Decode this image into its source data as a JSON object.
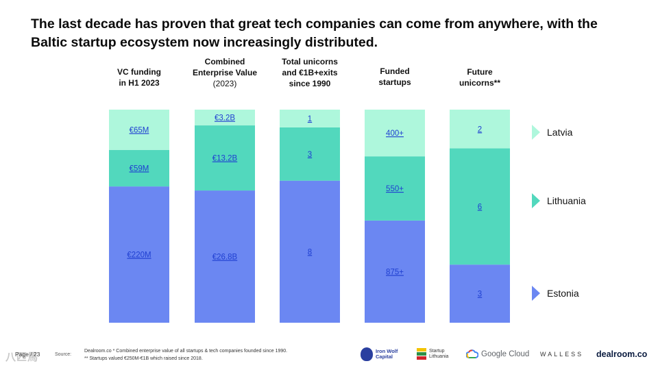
{
  "title": "The last decade has proven that great tech companies can come from anywhere, with the Baltic startup ecosystem now increasingly distributed.",
  "chart_data": {
    "type": "bar",
    "stacked": "100%",
    "categories": [
      [
        "VC funding",
        "in H1 2023"
      ],
      [
        "Combined",
        "Enterprise Value",
        "(2023)"
      ],
      [
        "Total unicorns",
        "and €1B+exits",
        "since 1990"
      ],
      [
        "Funded",
        "startups"
      ],
      [
        "Future",
        "unicorns**"
      ]
    ],
    "series": [
      {
        "name": "Estonia",
        "color": "#6b87f2",
        "values": [
          220,
          26.8,
          8,
          875,
          3
        ],
        "labels": [
          "€220M",
          "€26.8B",
          "8",
          "875+",
          "3"
        ]
      },
      {
        "name": "Lithuania",
        "color": "#52d8bd",
        "values": [
          59,
          13.2,
          3,
          550,
          6
        ],
        "labels": [
          "€59M",
          "€13.2B",
          "3",
          "550+",
          "6"
        ]
      },
      {
        "name": "Latvia",
        "color": "#aef7dc",
        "values": [
          65,
          3.2,
          1,
          400,
          2
        ],
        "labels": [
          "€65M",
          "€3.2B",
          "1",
          "400+",
          "2"
        ]
      }
    ],
    "legend": [
      "Latvia",
      "Lithuania",
      "Estonia"
    ],
    "legend_position": "right"
  },
  "footer": {
    "watermark": "八匹馬",
    "page": "Page / 23",
    "source_key": "Source:",
    "note_1": "Dealroom.co * Combined enterprise value of all startups & tech companies founded since 1990.",
    "note_2": "**  Startups valued €250M-€1B which raised since 2018."
  },
  "logos": {
    "iron_wolf_line1": "Iron Wolf",
    "iron_wolf_line2": "Capital",
    "startup_lt_line1": "Startup",
    "startup_lt_line2": "Lithuania",
    "google_cloud": "Google Cloud",
    "walless": "WALLESS",
    "dealroom": "dealroom.co"
  }
}
